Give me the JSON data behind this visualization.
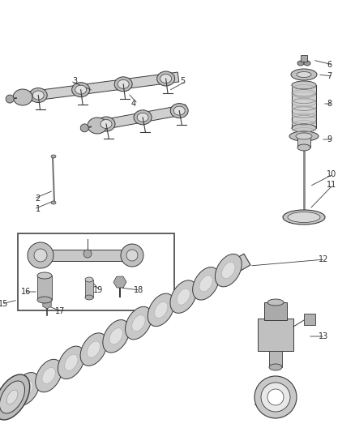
{
  "background_color": "#ffffff",
  "fig_width": 4.38,
  "fig_height": 5.33,
  "dpi": 100,
  "label_fontsize": 7.0,
  "label_color": "#2a2a2a",
  "line_color": "#3a3a3a",
  "part_color": "#c8c8c8",
  "part_edge": "#3a3a3a",
  "part_lw": 0.7
}
